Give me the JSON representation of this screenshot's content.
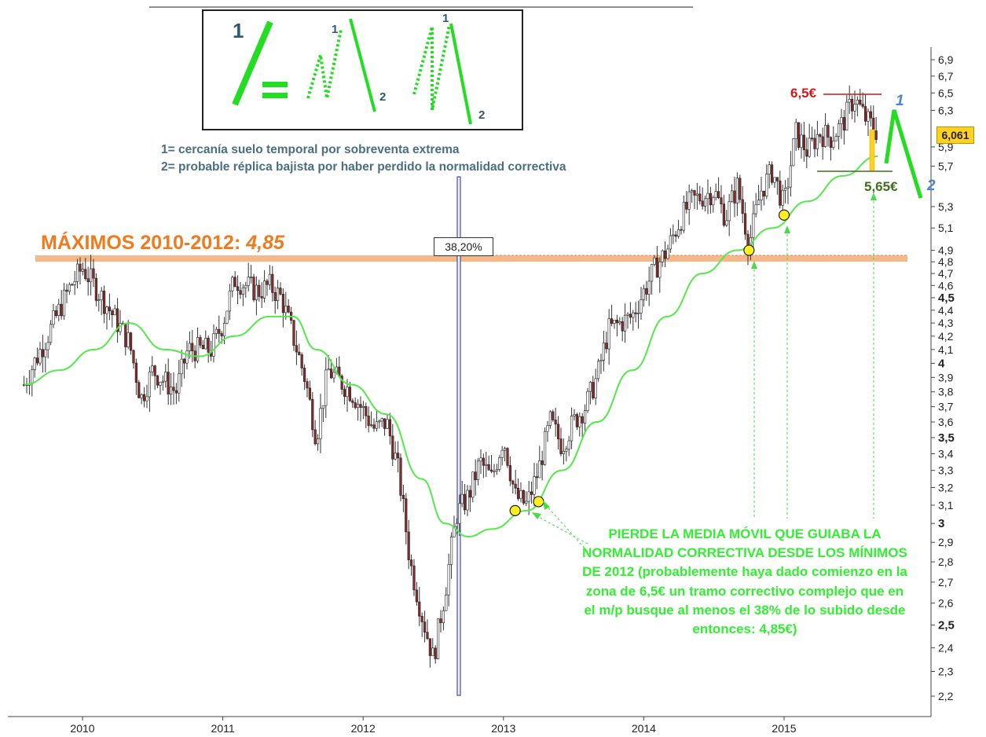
{
  "chart_data": {
    "type": "candlestick",
    "title": "",
    "xlabel": "",
    "ylabel": "",
    "scale": "log",
    "ylim": [
      2.12,
      7.05
    ],
    "x_tick_labels": [
      "2010",
      "2011",
      "2012",
      "2013",
      "2014",
      "2015"
    ],
    "y_tick_labels": [
      {
        "label": "6,9",
        "value": 6.9
      },
      {
        "label": "6,7",
        "value": 6.7
      },
      {
        "label": "6,5",
        "value": 6.5
      },
      {
        "label": "6,3",
        "value": 6.3
      },
      {
        "label": "5,9",
        "value": 5.9
      },
      {
        "label": "5,7",
        "value": 5.7
      },
      {
        "label": "5,3",
        "value": 5.3
      },
      {
        "label": "5,1",
        "value": 5.1
      },
      {
        "label": "4,9",
        "value": 4.9
      },
      {
        "label": "4,8",
        "value": 4.8
      },
      {
        "label": "4,7",
        "value": 4.7
      },
      {
        "label": "4,6",
        "value": 4.6
      },
      {
        "label": "4,5",
        "value": 4.5,
        "bold": true
      },
      {
        "label": "4,4",
        "value": 4.4
      },
      {
        "label": "4,3",
        "value": 4.3
      },
      {
        "label": "4,2",
        "value": 4.2
      },
      {
        "label": "4,1",
        "value": 4.1
      },
      {
        "label": "4",
        "value": 4.0,
        "bold": true
      },
      {
        "label": "3,9",
        "value": 3.9
      },
      {
        "label": "3,8",
        "value": 3.8
      },
      {
        "label": "3,7",
        "value": 3.7
      },
      {
        "label": "3,6",
        "value": 3.6
      },
      {
        "label": "3,5",
        "value": 3.5,
        "bold": true
      },
      {
        "label": "3,4",
        "value": 3.4
      },
      {
        "label": "3,3",
        "value": 3.3
      },
      {
        "label": "3,2",
        "value": 3.2
      },
      {
        "label": "3,1",
        "value": 3.1
      },
      {
        "label": "3",
        "value": 3.0,
        "bold": true
      },
      {
        "label": "2,9",
        "value": 2.9
      },
      {
        "label": "2,8",
        "value": 2.8
      },
      {
        "label": "2,7",
        "value": 2.7
      },
      {
        "label": "2,6",
        "value": 2.6
      },
      {
        "label": "2,5",
        "value": 2.5,
        "bold": true
      },
      {
        "label": "2,4",
        "value": 2.4
      },
      {
        "label": "2,3",
        "value": 2.3
      },
      {
        "label": "2,2",
        "value": 2.2
      }
    ],
    "price_path": [
      {
        "date": "2009-08",
        "close": 3.85
      },
      {
        "date": "2009-10",
        "close": 4.2
      },
      {
        "date": "2009-12",
        "close": 4.6
      },
      {
        "date": "2010-01",
        "close": 4.75
      },
      {
        "date": "2010-03",
        "close": 4.45
      },
      {
        "date": "2010-05",
        "close": 4.15
      },
      {
        "date": "2010-06",
        "close": 3.75
      },
      {
        "date": "2010-07",
        "close": 3.95
      },
      {
        "date": "2010-09",
        "close": 3.8
      },
      {
        "date": "2010-10",
        "close": 4.1
      },
      {
        "date": "2010-12",
        "close": 4.1
      },
      {
        "date": "2011-01",
        "close": 4.3
      },
      {
        "date": "2011-02",
        "close": 4.65
      },
      {
        "date": "2011-04",
        "close": 4.55
      },
      {
        "date": "2011-05",
        "close": 4.6
      },
      {
        "date": "2011-06",
        "close": 4.5
      },
      {
        "date": "2011-08",
        "close": 3.9
      },
      {
        "date": "2011-09",
        "close": 3.5
      },
      {
        "date": "2011-10",
        "close": 3.95
      },
      {
        "date": "2011-12",
        "close": 3.8
      },
      {
        "date": "2012-02",
        "close": 3.55
      },
      {
        "date": "2012-03",
        "close": 3.6
      },
      {
        "date": "2012-04",
        "close": 3.3
      },
      {
        "date": "2012-05",
        "close": 2.8
      },
      {
        "date": "2012-06",
        "close": 2.55
      },
      {
        "date": "2012-07",
        "close": 2.35
      },
      {
        "date": "2012-08",
        "close": 2.65
      },
      {
        "date": "2012-09",
        "close": 3.05
      },
      {
        "date": "2012-10",
        "close": 3.15
      },
      {
        "date": "2012-11",
        "close": 3.35
      },
      {
        "date": "2012-12",
        "close": 3.25
      },
      {
        "date": "2013-01",
        "close": 3.5
      },
      {
        "date": "2013-02",
        "close": 3.15
      },
      {
        "date": "2013-03",
        "close": 3.1
      },
      {
        "date": "2013-04",
        "close": 3.3
      },
      {
        "date": "2013-05",
        "close": 3.6
      },
      {
        "date": "2013-06",
        "close": 3.45
      },
      {
        "date": "2013-07",
        "close": 3.6
      },
      {
        "date": "2013-08",
        "close": 3.7
      },
      {
        "date": "2013-09",
        "close": 3.9
      },
      {
        "date": "2013-10",
        "close": 4.25
      },
      {
        "date": "2013-11",
        "close": 4.3
      },
      {
        "date": "2013-12",
        "close": 4.35
      },
      {
        "date": "2014-01",
        "close": 4.55
      },
      {
        "date": "2014-02",
        "close": 4.75
      },
      {
        "date": "2014-03",
        "close": 4.9
      },
      {
        "date": "2014-04",
        "close": 5.15
      },
      {
        "date": "2014-05",
        "close": 5.35
      },
      {
        "date": "2014-06",
        "close": 5.4
      },
      {
        "date": "2014-07",
        "close": 5.45
      },
      {
        "date": "2014-08",
        "close": 5.2
      },
      {
        "date": "2014-09",
        "close": 5.5
      },
      {
        "date": "2014-10",
        "close": 4.95
      },
      {
        "date": "2014-11",
        "close": 5.45
      },
      {
        "date": "2014-12",
        "close": 5.65
      },
      {
        "date": "2015-01",
        "close": 5.3
      },
      {
        "date": "2015-02",
        "close": 6.05
      },
      {
        "date": "2015-03",
        "close": 5.85
      },
      {
        "date": "2015-04",
        "close": 6.05
      },
      {
        "date": "2015-05",
        "close": 6.0
      },
      {
        "date": "2015-06",
        "close": 6.15
      },
      {
        "date": "2015-07",
        "close": 6.45
      },
      {
        "date": "2015-08",
        "close": 6.2
      },
      {
        "date": "2015-09",
        "close": 6.06
      }
    ],
    "moving_average": [
      {
        "date": "2009-08",
        "value": 3.85
      },
      {
        "date": "2009-11",
        "value": 3.95
      },
      {
        "date": "2010-02",
        "value": 4.1
      },
      {
        "date": "2010-05",
        "value": 4.3
      },
      {
        "date": "2010-08",
        "value": 4.1
      },
      {
        "date": "2010-11",
        "value": 4.05
      },
      {
        "date": "2011-02",
        "value": 4.2
      },
      {
        "date": "2011-05",
        "value": 4.35
      },
      {
        "date": "2011-07",
        "value": 4.35
      },
      {
        "date": "2011-09",
        "value": 4.1
      },
      {
        "date": "2011-12",
        "value": 3.85
      },
      {
        "date": "2012-03",
        "value": 3.65
      },
      {
        "date": "2012-06",
        "value": 3.25
      },
      {
        "date": "2012-08",
        "value": 3.0
      },
      {
        "date": "2012-10",
        "value": 2.93
      },
      {
        "date": "2012-12",
        "value": 2.97
      },
      {
        "date": "2013-03",
        "value": 3.07
      },
      {
        "date": "2013-06",
        "value": 3.3
      },
      {
        "date": "2013-09",
        "value": 3.6
      },
      {
        "date": "2013-12",
        "value": 3.95
      },
      {
        "date": "2014-03",
        "value": 4.35
      },
      {
        "date": "2014-06",
        "value": 4.7
      },
      {
        "date": "2014-09",
        "value": 4.9
      },
      {
        "date": "2014-12",
        "value": 5.1
      },
      {
        "date": "2015-03",
        "value": 5.35
      },
      {
        "date": "2015-06",
        "value": 5.6
      },
      {
        "date": "2015-09",
        "value": 5.8
      }
    ],
    "highlighted_lows": [
      {
        "date": "2013-02",
        "value": 3.07
      },
      {
        "date": "2013-04",
        "value": 3.12
      },
      {
        "date": "2014-10",
        "value": 4.9
      },
      {
        "date": "2015-01",
        "value": 5.22
      }
    ],
    "current_price": "6,061",
    "current_value": 6.061,
    "levels": {
      "high": {
        "label": "6,5€",
        "value": 6.5,
        "color": "#d01818"
      },
      "low": {
        "label": "5,65€",
        "value": 5.65,
        "color": "#3f6e1e"
      },
      "maxima": {
        "label": "MÁXIMOS 2010-2012:",
        "value_label": "4,85",
        "value": 4.85,
        "color": "#f5b07a"
      }
    },
    "fibonacci_label": "38,20%",
    "legend": {
      "line1": "1= cercanía suelo temporal por sobreventa extrema",
      "line2": "2= probable réplica bajista por haber perdido la normalidad correctiva",
      "mark_1": "1",
      "mark_2": "2",
      "mark_1b": "1",
      "mark_2b": "2",
      "mark_1c": "1",
      "mark_2c": "2"
    },
    "projection_labels": {
      "one": "1",
      "two": "2"
    },
    "annotation": "PIERDE LA MEDIA MÓVIL QUE GUIABA LA NORMALIDAD CORRECTIVA DESDE LOS MÍNIMOS DE 2012 (probablemente haya dado comienzo en la zona de 6,5€ un tramo correctivo complejo que en el m/p busque al menos el 38% de lo subido desde entonces: 4,85€)",
    "colors": {
      "moving_average": "#55e84a",
      "candles": "#222222",
      "projection": "#22dd22",
      "fib_line": "#1c2f9c",
      "price_tag": "#ffd21f"
    }
  }
}
